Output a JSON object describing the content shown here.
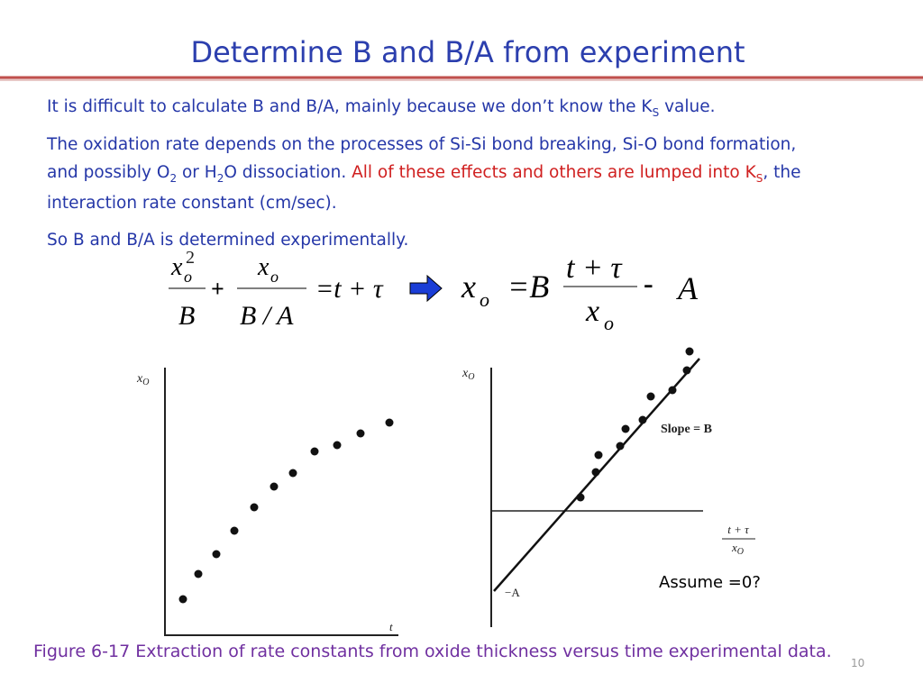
{
  "title": "Determine B and B/A from experiment",
  "body": [
    {
      "lines": [
        [
          "It is difficult to calculate B and B/A, mainly because we don’t know the K",
          "S",
          " value."
        ]
      ]
    },
    {
      "lines": [
        [
          "The oxidation rate depends on the processes of Si-Si bond breaking, Si-O bond formation,"
        ],
        [
          "and possibly O",
          "2",
          " or H",
          "2",
          "O dissociation. ",
          "All of these effects and others are lumped into K",
          "S",
          ", the"
        ],
        [
          "interaction rate constant (cm/sec)."
        ]
      ]
    },
    {
      "lines": [
        [
          "So B and B/A is determined experimentally."
        ]
      ]
    }
  ],
  "equations": [
    {
      "numerator_1": "x",
      "subscript_1": "o",
      "superscript": "2",
      "denominator_1": "B",
      "plus": "+",
      "numerator_2": "x",
      "subscript_2": "o",
      "denominator_2": "B / A",
      "right_side": "=t + τ"
    },
    {
      "lhs": "x",
      "lhs_subscript": "o",
      "equals_b": "=B",
      "numerator": "t + τ",
      "denominator": "x",
      "denominator_subscript": "o",
      "minus": "-",
      "a": "A"
    }
  ],
  "figures": [
    {
      "y_label": "x",
      "y_label_subscript": "O",
      "x_label": "t"
    },
    {
      "y_label": "x",
      "y_label_subscript": "O",
      "slope_label": "Slope = B",
      "x_label_numerator": "t + τ",
      "x_label_denominator": "x",
      "x_label_denominator_subscript": "O",
      "intercept_label": "−A"
    }
  ],
  "note": "Assume  =0?",
  "caption": "Figure 6-17 Extraction of rate constants from oxide thickness versus time experimental data.",
  "page_number": "10"
}
